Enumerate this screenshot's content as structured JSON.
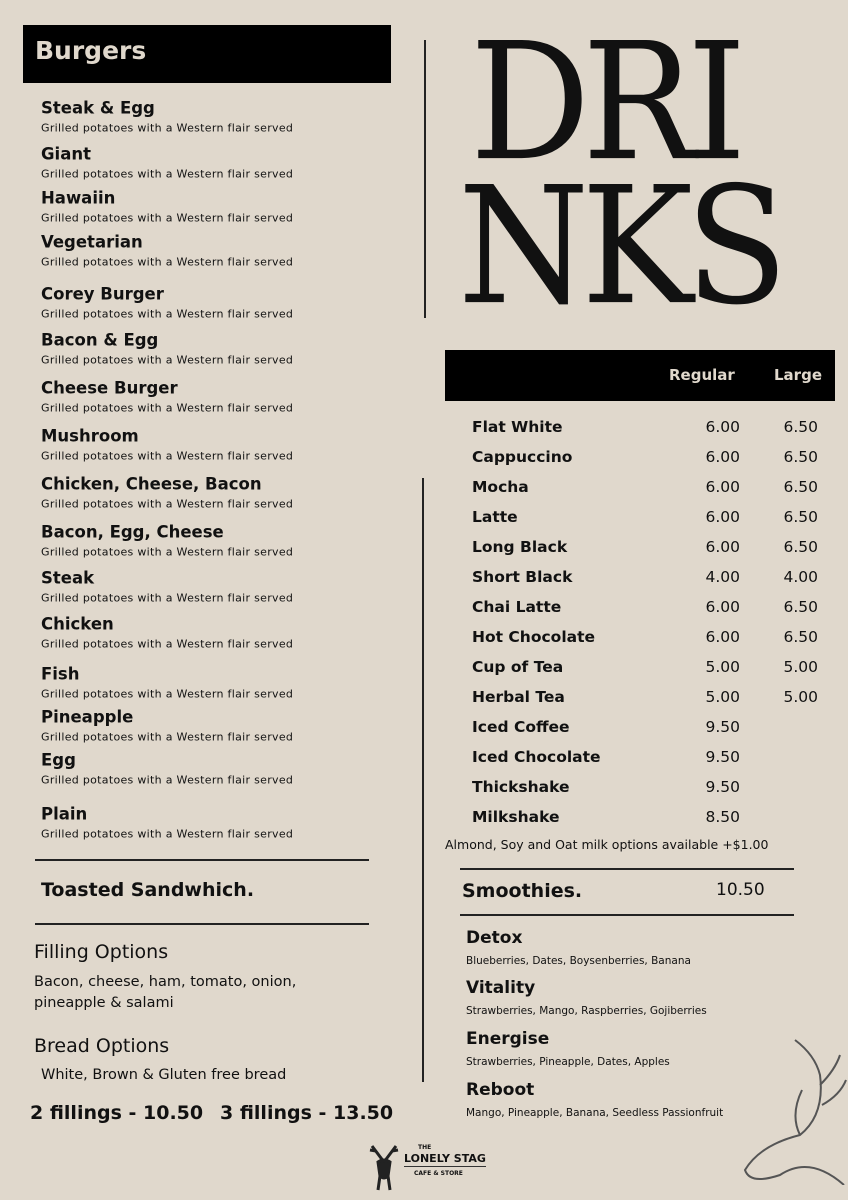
{
  "burgers": {
    "title": "Burgers",
    "items": [
      {
        "name": "Steak & Egg",
        "desc": "Grilled potatoes with a Western flair served"
      },
      {
        "name": "Giant",
        "desc": "Grilled potatoes with a Western flair served"
      },
      {
        "name": "Hawaiin",
        "desc": "Grilled potatoes with a Western flair served"
      },
      {
        "name": "Vegetarian",
        "desc": "Grilled potatoes with a Western flair served"
      },
      {
        "name": "Corey Burger",
        "desc": "Grilled potatoes with a Western flair served"
      },
      {
        "name": "Bacon & Egg",
        "desc": "Grilled potatoes with a Western flair served"
      },
      {
        "name": "Cheese Burger",
        "desc": "Grilled potatoes with a Western flair served"
      },
      {
        "name": "Mushroom",
        "desc": "Grilled potatoes with a Western flair served"
      },
      {
        "name": "Chicken, Cheese, Bacon",
        "desc": "Grilled potatoes with a Western flair served"
      },
      {
        "name": "Bacon, Egg, Cheese",
        "desc": "Grilled potatoes with a Western flair served"
      },
      {
        "name": "Steak",
        "desc": "Grilled potatoes with a Western flair served"
      },
      {
        "name": "Chicken",
        "desc": "Grilled potatoes with a Western flair served"
      },
      {
        "name": "Fish",
        "desc": "Grilled potatoes with a Western flair served"
      },
      {
        "name": "Pineapple",
        "desc": "Grilled potatoes with a Western flair served"
      },
      {
        "name": "Egg",
        "desc": "Grilled potatoes with a Western flair served"
      },
      {
        "name": "Plain",
        "desc": "Grilled potatoes with a Western flair served"
      }
    ]
  },
  "sandwich": {
    "title": "Toasted Sandwhich.",
    "filling_title": "Filling Options",
    "filling_text": "Bacon, cheese, ham, tomato, onion, pineapple & salami",
    "bread_title": "Bread Options",
    "bread_text": "White, Brown & Gluten free bread",
    "price1": "2 fillings - 10.50",
    "price2": "3 fillings - 13.50"
  },
  "drinks": {
    "title_line1": "DRI",
    "title_line2": "NKS",
    "col_regular": "Regular",
    "col_large": "Large",
    "items": [
      {
        "name": "Flat White",
        "regular": "6.00",
        "large": "6.50"
      },
      {
        "name": "Cappuccino",
        "regular": "6.00",
        "large": "6.50"
      },
      {
        "name": "Mocha",
        "regular": "6.00",
        "large": "6.50"
      },
      {
        "name": "Latte",
        "regular": "6.00",
        "large": "6.50"
      },
      {
        "name": "Long Black",
        "regular": "6.00",
        "large": "6.50"
      },
      {
        "name": "Short Black",
        "regular": "4.00",
        "large": "4.00"
      },
      {
        "name": "Chai Latte",
        "regular": "6.00",
        "large": "6.50"
      },
      {
        "name": "Hot Chocolate",
        "regular": "6.00",
        "large": "6.50"
      },
      {
        "name": "Cup of Tea",
        "regular": "5.00",
        "large": "5.00"
      },
      {
        "name": "Herbal Tea",
        "regular": "5.00",
        "large": "5.00"
      },
      {
        "name": "Iced Coffee",
        "regular": "9.50",
        "large": ""
      },
      {
        "name": "Iced Chocolate",
        "regular": "9.50",
        "large": ""
      },
      {
        "name": "Thickshake",
        "regular": "9.50",
        "large": ""
      },
      {
        "name": "Milkshake",
        "regular": "8.50",
        "large": ""
      }
    ],
    "milk_note": "Almond, Soy and Oat milk options available +$1.00"
  },
  "smoothies": {
    "title": "Smoothies.",
    "price": "10.50",
    "items": [
      {
        "name": "Detox",
        "desc": "Blueberries, Dates, Boysenberries, Banana"
      },
      {
        "name": "Vitality",
        "desc": "Strawberries, Mango, Raspberries, Gojiberries"
      },
      {
        "name": "Energise",
        "desc": "Strawberries, Pineapple, Dates, Apples"
      },
      {
        "name": "Reboot",
        "desc": "Mango, Pineapple, Banana, Seedless Passionfruit"
      }
    ]
  },
  "logo": {
    "line1": "THE",
    "line2": "LONELY STAG",
    "line3": "CAFE & STORE"
  }
}
